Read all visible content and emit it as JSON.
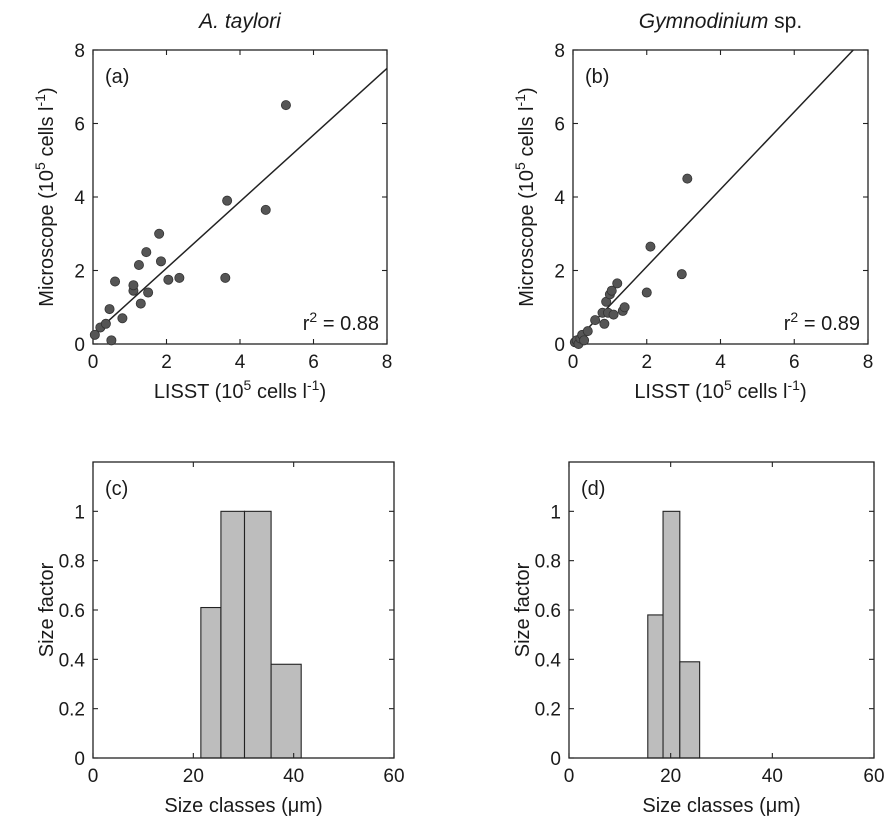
{
  "chart_data": [
    {
      "type": "scatter",
      "title": "A. taylori",
      "panel_label": "(a)",
      "xlabel": "LISST (10^5 cells l^-1)",
      "ylabel": "Microscope (10^5 cells l^-1)",
      "xlim": [
        0,
        8
      ],
      "ylim": [
        0,
        8
      ],
      "xticks": [
        0,
        2,
        4,
        6,
        8
      ],
      "yticks": [
        0,
        2,
        4,
        6,
        8
      ],
      "annotation": "r^2 = 0.88",
      "fit_line": {
        "x": [
          0,
          8
        ],
        "y": [
          0.25,
          7.5
        ]
      },
      "points": {
        "x": [
          0.05,
          0.2,
          0.35,
          0.45,
          0.5,
          0.6,
          0.8,
          1.1,
          1.1,
          1.25,
          1.3,
          1.45,
          1.5,
          1.8,
          1.85,
          2.05,
          2.35,
          3.6,
          3.65,
          4.7,
          5.25
        ],
        "y": [
          0.25,
          0.45,
          0.55,
          0.95,
          0.1,
          1.7,
          0.7,
          1.45,
          1.6,
          2.15,
          1.1,
          2.5,
          1.4,
          3.0,
          2.25,
          1.75,
          1.8,
          1.8,
          3.9,
          3.65,
          6.5
        ]
      }
    },
    {
      "type": "scatter",
      "title": "Gymnodinium sp.",
      "title_italic": "Gymnodinium",
      "title_plain": " sp.",
      "panel_label": "(b)",
      "xlabel": "LISST (10^5 cells l^-1)",
      "ylabel": "Microscope (10^5 cells l^-1)",
      "xlim": [
        0,
        8
      ],
      "ylim": [
        0,
        8
      ],
      "xticks": [
        0,
        2,
        4,
        6,
        8
      ],
      "yticks": [
        0,
        2,
        4,
        6,
        8
      ],
      "annotation": "r^2 = 0.89",
      "fit_line": {
        "x": [
          0,
          7.6
        ],
        "y": [
          0,
          8
        ]
      },
      "points": {
        "x": [
          0.05,
          0.1,
          0.15,
          0.2,
          0.25,
          0.3,
          0.4,
          0.6,
          0.8,
          0.85,
          0.9,
          0.95,
          1.0,
          1.05,
          1.1,
          1.2,
          1.35,
          1.4,
          2.0,
          2.1,
          2.95,
          3.1
        ],
        "y": [
          0.05,
          0.1,
          0.0,
          0.15,
          0.25,
          0.1,
          0.35,
          0.65,
          0.85,
          0.55,
          1.15,
          0.85,
          1.35,
          1.45,
          0.8,
          1.65,
          0.9,
          1.0,
          1.4,
          2.65,
          1.9,
          4.5
        ]
      }
    },
    {
      "type": "bar",
      "panel_label": "(c)",
      "xlabel": "Size classes (μm)",
      "ylabel": "Size factor",
      "xlim": [
        0,
        60
      ],
      "ylim": [
        0,
        1.2
      ],
      "xticks": [
        0,
        20,
        40,
        60
      ],
      "yticks": [
        0,
        0.2,
        0.4,
        0.6,
        0.8,
        1
      ],
      "bins": [
        {
          "from": 21.5,
          "to": 25.5,
          "value": 0.61
        },
        {
          "from": 25.5,
          "to": 30.2,
          "value": 1.0
        },
        {
          "from": 30.2,
          "to": 35.5,
          "value": 1.0
        },
        {
          "from": 35.5,
          "to": 41.5,
          "value": 0.38
        }
      ]
    },
    {
      "type": "bar",
      "panel_label": "(d)",
      "xlabel": "Size classes (μm)",
      "ylabel": "Size factor",
      "xlim": [
        0,
        60
      ],
      "ylim": [
        0,
        1.2
      ],
      "xticks": [
        0,
        20,
        40,
        60
      ],
      "yticks": [
        0,
        0.2,
        0.4,
        0.6,
        0.8,
        1
      ],
      "bins": [
        {
          "from": 15.5,
          "to": 18.5,
          "value": 0.58
        },
        {
          "from": 18.5,
          "to": 21.8,
          "value": 1.0
        },
        {
          "from": 21.8,
          "to": 25.7,
          "value": 0.39
        }
      ]
    }
  ]
}
